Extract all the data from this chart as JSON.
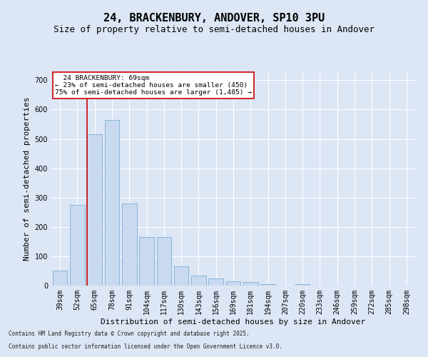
{
  "title": "24, BRACKENBURY, ANDOVER, SP10 3PU",
  "subtitle": "Size of property relative to semi-detached houses in Andover",
  "xlabel": "Distribution of semi-detached houses by size in Andover",
  "ylabel": "Number of semi-detached properties",
  "categories": [
    "39sqm",
    "52sqm",
    "65sqm",
    "78sqm",
    "91sqm",
    "104sqm",
    "117sqm",
    "130sqm",
    "143sqm",
    "156sqm",
    "169sqm",
    "181sqm",
    "194sqm",
    "207sqm",
    "220sqm",
    "233sqm",
    "246sqm",
    "259sqm",
    "272sqm",
    "285sqm",
    "298sqm"
  ],
  "values": [
    50,
    275,
    515,
    565,
    280,
    165,
    165,
    65,
    35,
    25,
    15,
    12,
    5,
    0,
    5,
    0,
    0,
    0,
    0,
    0,
    0
  ],
  "bar_color": "#c9d9f0",
  "bar_edge_color": "#7bafd4",
  "marker_line_index": 2,
  "marker_label": "24 BRACKENBURY: 69sqm",
  "marker_pct_smaller": "23% of semi-detached houses are smaller (450)",
  "marker_pct_larger": "75% of semi-detached houses are larger (1,485)",
  "marker_line_color": "#cc0000",
  "annotation_box_color": "#ffffff",
  "annotation_box_edge": "#cc0000",
  "background_color": "#dce6f5",
  "plot_bg_color": "#dce6f5",
  "footer_line1": "Contains HM Land Registry data © Crown copyright and database right 2025.",
  "footer_line2": "Contains public sector information licensed under the Open Government Licence v3.0.",
  "ylim": [
    0,
    730
  ],
  "title_fontsize": 11,
  "subtitle_fontsize": 9,
  "tick_fontsize": 7,
  "ylabel_fontsize": 8,
  "xlabel_fontsize": 8,
  "footer_fontsize": 5.5
}
